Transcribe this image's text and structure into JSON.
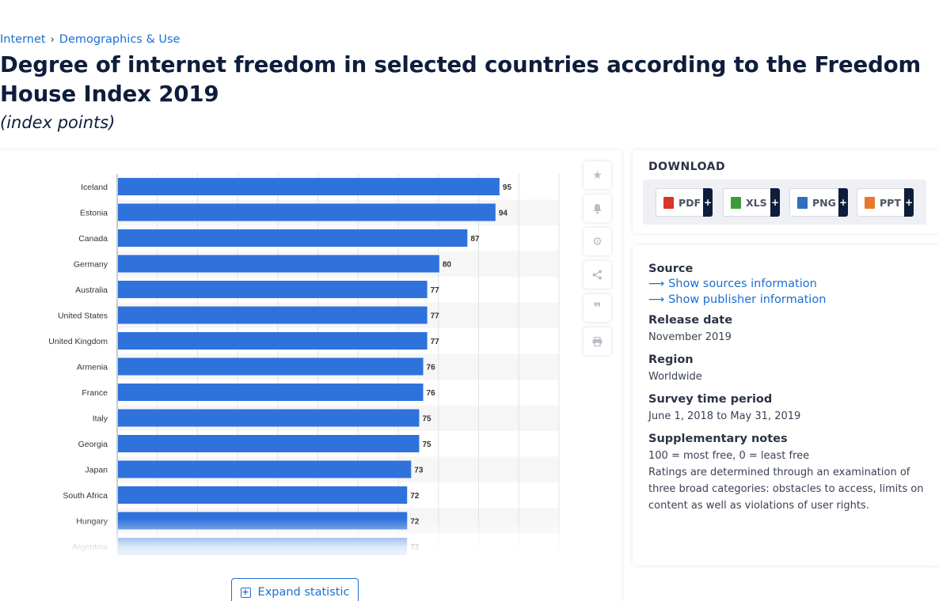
{
  "breadcrumb": {
    "items": [
      "Internet",
      "Demographics & Use"
    ],
    "separator": "›"
  },
  "page": {
    "title": "Degree of internet freedom in selected countries according to the Freedom House Index 2019",
    "subtitle": "(index points)"
  },
  "chart_data": {
    "type": "bar",
    "orientation": "horizontal",
    "categories": [
      "Iceland",
      "Estonia",
      "Canada",
      "Germany",
      "Australia",
      "United States",
      "United Kingdom",
      "Armenia",
      "France",
      "Italy",
      "Georgia",
      "Japan",
      "South Africa",
      "Hungary",
      "Argentina"
    ],
    "values": [
      95,
      94,
      87,
      80,
      77,
      77,
      77,
      76,
      76,
      75,
      75,
      73,
      72,
      72,
      72
    ],
    "xlim": [
      0,
      110
    ],
    "grid": true,
    "bar_color": "#2f72dc"
  },
  "side_buttons": [
    {
      "icon": "star-icon"
    },
    {
      "icon": "bell-icon"
    },
    {
      "icon": "gear-icon"
    },
    {
      "icon": "share-icon"
    },
    {
      "icon": "quote-icon"
    },
    {
      "icon": "print-icon"
    }
  ],
  "expand": {
    "label": "Expand statistic"
  },
  "download": {
    "title": "DOWNLOAD",
    "formats": [
      {
        "label": "PDF",
        "color": "#d9352b"
      },
      {
        "label": "XLS",
        "color": "#3d9b3d"
      },
      {
        "label": "PNG",
        "color": "#2e6fbf"
      },
      {
        "label": "PPT",
        "color": "#e8772e"
      }
    ],
    "plus": "+"
  },
  "info": {
    "source_heading": "Source",
    "source_link": "Show sources information",
    "publisher_link": "Show publisher information",
    "release_heading": "Release date",
    "release_value": "November 2019",
    "region_heading": "Region",
    "region_value": "Worldwide",
    "period_heading": "Survey time period",
    "period_value": "June 1, 2018 to May 31, 2019",
    "notes_heading": "Supplementary notes",
    "notes_line1": "100 = most free, 0 = least free",
    "notes_line2": "Ratings are determined through an examination of three broad categories: obstacles to access, limits on content as well as violations of user rights."
  }
}
